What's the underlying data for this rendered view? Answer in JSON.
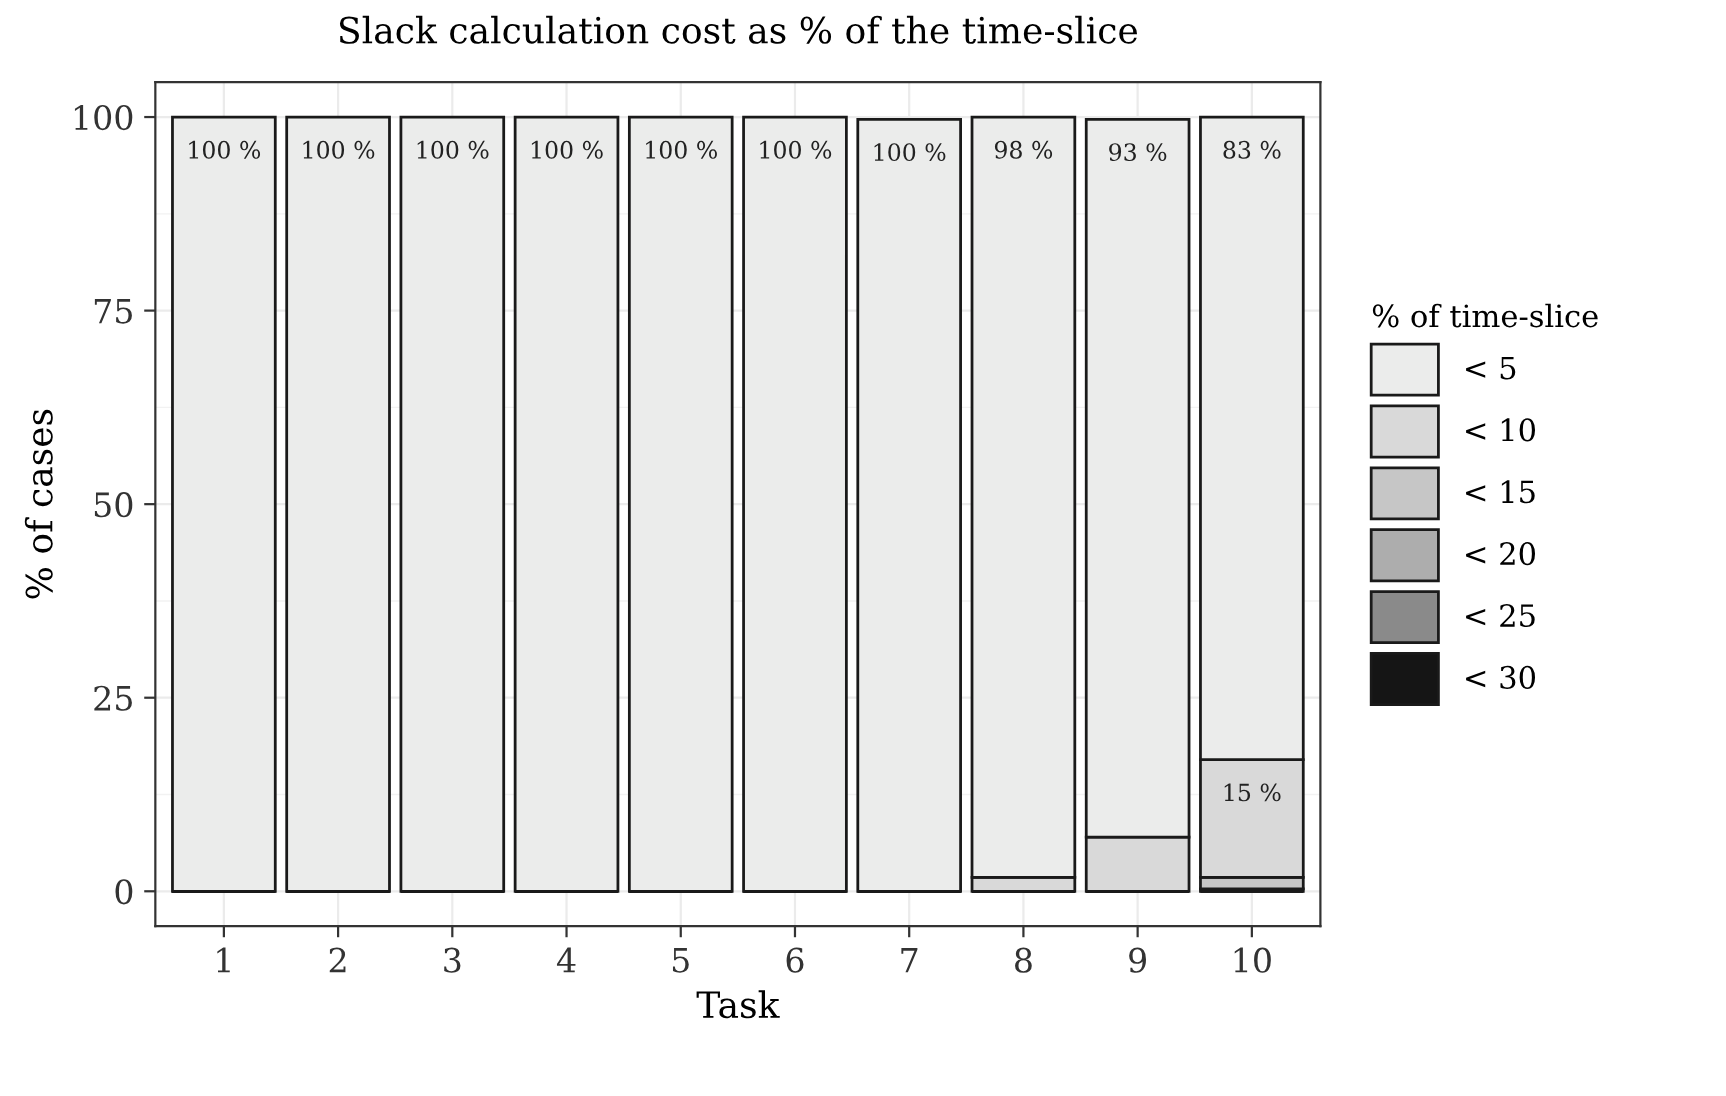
{
  "chart_data": {
    "type": "bar",
    "stacked": true,
    "title": "Slack calculation cost as % of the time-slice",
    "xlabel": "Task",
    "ylabel": "% of cases",
    "legend_title": "% of time-slice",
    "legend": "right",
    "grid": true,
    "categories": [
      "1",
      "2",
      "3",
      "4",
      "5",
      "6",
      "7",
      "8",
      "9",
      "10"
    ],
    "ylim": [
      -4.5,
      104.5
    ],
    "yticks": [
      0,
      25,
      50,
      75,
      100
    ],
    "series": [
      {
        "name": "< 30",
        "color": "#151515",
        "values": [
          0,
          0,
          0,
          0,
          0,
          0,
          0,
          0,
          0,
          0
        ]
      },
      {
        "name": "< 25",
        "color": "#8a8a8a",
        "values": [
          0,
          0,
          0,
          0,
          0,
          0,
          0,
          0,
          0,
          0
        ]
      },
      {
        "name": "< 20",
        "color": "#adadad",
        "values": [
          0,
          0,
          0,
          0,
          0,
          0,
          0,
          0,
          0,
          0.3
        ]
      },
      {
        "name": "< 15",
        "color": "#c6c6c6",
        "values": [
          0,
          0,
          0,
          0,
          0,
          0,
          0,
          0,
          null,
          1.5
        ]
      },
      {
        "name": "< 10",
        "color": "#d9d9d9",
        "values": [
          0,
          0,
          0,
          0,
          0,
          0,
          null,
          1.8,
          7.0,
          15.2
        ],
        "value_labels": [
          null,
          null,
          null,
          null,
          null,
          null,
          null,
          null,
          null,
          "15 %"
        ]
      },
      {
        "name": "< 5",
        "color": "#ebeceb",
        "values": [
          100,
          100,
          100,
          100,
          100,
          100,
          99.7,
          98.2,
          92.7,
          83.0
        ],
        "value_labels": [
          "100 %",
          "100 %",
          "100 %",
          "100 %",
          "100 %",
          "100 %",
          "100 %",
          "98 %",
          "93 %",
          "83 %"
        ]
      }
    ]
  }
}
